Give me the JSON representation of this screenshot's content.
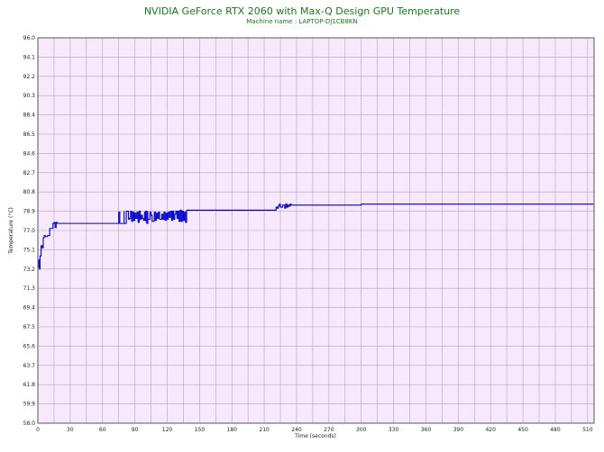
{
  "chart_data": {
    "type": "line",
    "title": "NVIDIA GeForce RTX 2060 with Max-Q Design GPU Temperature",
    "subtitle": "Machine name : LAPTOP-DJ1CB8KN",
    "xlabel": "Time (seconds)",
    "ylabel": "Temperature (°C)",
    "xlim": [
      0,
      516
    ],
    "ylim": [
      58.0,
      96.0
    ],
    "x_ticks": [
      "0",
      "30",
      "60",
      "90",
      "120",
      "150",
      "180",
      "210",
      "240",
      "270",
      "300",
      "330",
      "360",
      "390",
      "420",
      "450",
      "480",
      "510"
    ],
    "y_ticks": [
      "58.0",
      "59.9",
      "61.8",
      "63.7",
      "65.6",
      "67.5",
      "69.4",
      "71.3",
      "73.2",
      "75.1",
      "77.0",
      "78.9",
      "80.8",
      "82.7",
      "84.6",
      "86.5",
      "88.4",
      "90.3",
      "92.2",
      "94.1",
      "96.0"
    ],
    "grid": true,
    "background_color": "#f7e8fb",
    "grid_color": "#b8a0c0",
    "line_color": "#0000cc",
    "series": [
      {
        "x": [
          0,
          1,
          1.5,
          2,
          3,
          4,
          5,
          6,
          7,
          8,
          9,
          10,
          11,
          13,
          14,
          15,
          16,
          17,
          18,
          75,
          75,
          76,
          77,
          78,
          80,
          80,
          81,
          82,
          82,
          84,
          85,
          86,
          87,
          88,
          89,
          90,
          91,
          92,
          93,
          94,
          95,
          96,
          97,
          98,
          99,
          100,
          100,
          101,
          101,
          102,
          102,
          104,
          104,
          105,
          106,
          108,
          109,
          110,
          111,
          112,
          113,
          115,
          116,
          117,
          118,
          119,
          120,
          121,
          122,
          123,
          124,
          125,
          126,
          127,
          128,
          129,
          130,
          131,
          132,
          133,
          134,
          135,
          136,
          137,
          138,
          220,
          221,
          222,
          223,
          224,
          225,
          226,
          227,
          228,
          229,
          230,
          231,
          232,
          233,
          234,
          235,
          240,
          250,
          260,
          270,
          280,
          290,
          300,
          310,
          320,
          330,
          340,
          350,
          360,
          370,
          380,
          390,
          400,
          410,
          420,
          430,
          440,
          450,
          460,
          470,
          480,
          490,
          500,
          505,
          510,
          514,
          516
        ],
        "y": [
          73.4,
          74.1,
          73.2,
          74.5,
          75.5,
          75.3,
          76.3,
          76.5,
          76.4,
          76.4,
          76.5,
          76.5,
          77.2,
          77.2,
          77.7,
          77.8,
          77.3,
          77.8,
          77.7,
          77.7,
          78.8,
          77.7,
          77.7,
          77.7,
          78.9,
          77.7,
          77.7,
          77.7,
          78.9,
          78.1,
          78.2,
          78.9,
          77.9,
          78.8,
          78.0,
          78.7,
          78.2,
          78.8,
          77.8,
          78.9,
          78.1,
          78.5,
          78.2,
          78.0,
          78.8,
          77.9,
          78.9,
          78.2,
          77.7,
          78.9,
          78.1,
          78.8,
          78.8,
          78.5,
          77.9,
          78.8,
          78.0,
          78.7,
          78.2,
          78.8,
          78.1,
          78.6,
          78.1,
          78.8,
          78.0,
          78.7,
          78.1,
          78.8,
          78.3,
          78.9,
          78.0,
          78.9,
          78.1,
          78.6,
          78.9,
          78.2,
          78.9,
          77.9,
          79.0,
          77.9,
          78.9,
          78.0,
          78.8,
          77.8,
          79.0,
          79.0,
          79.3,
          79.2,
          79.4,
          79.6,
          79.3,
          79.3,
          79.5,
          79.5,
          79.2,
          79.6,
          79.3,
          79.5,
          79.4,
          79.6,
          79.5,
          79.5,
          79.5,
          79.5,
          79.5,
          79.5,
          79.5,
          79.6,
          79.6,
          79.6,
          79.6,
          79.6,
          79.6,
          79.6,
          79.6,
          79.6,
          79.6,
          79.6,
          79.6,
          79.6,
          79.6,
          79.6,
          79.6,
          79.6,
          79.6,
          79.6,
          79.6,
          79.6,
          79.6,
          79.6,
          79.6,
          79.6
        ]
      }
    ]
  }
}
